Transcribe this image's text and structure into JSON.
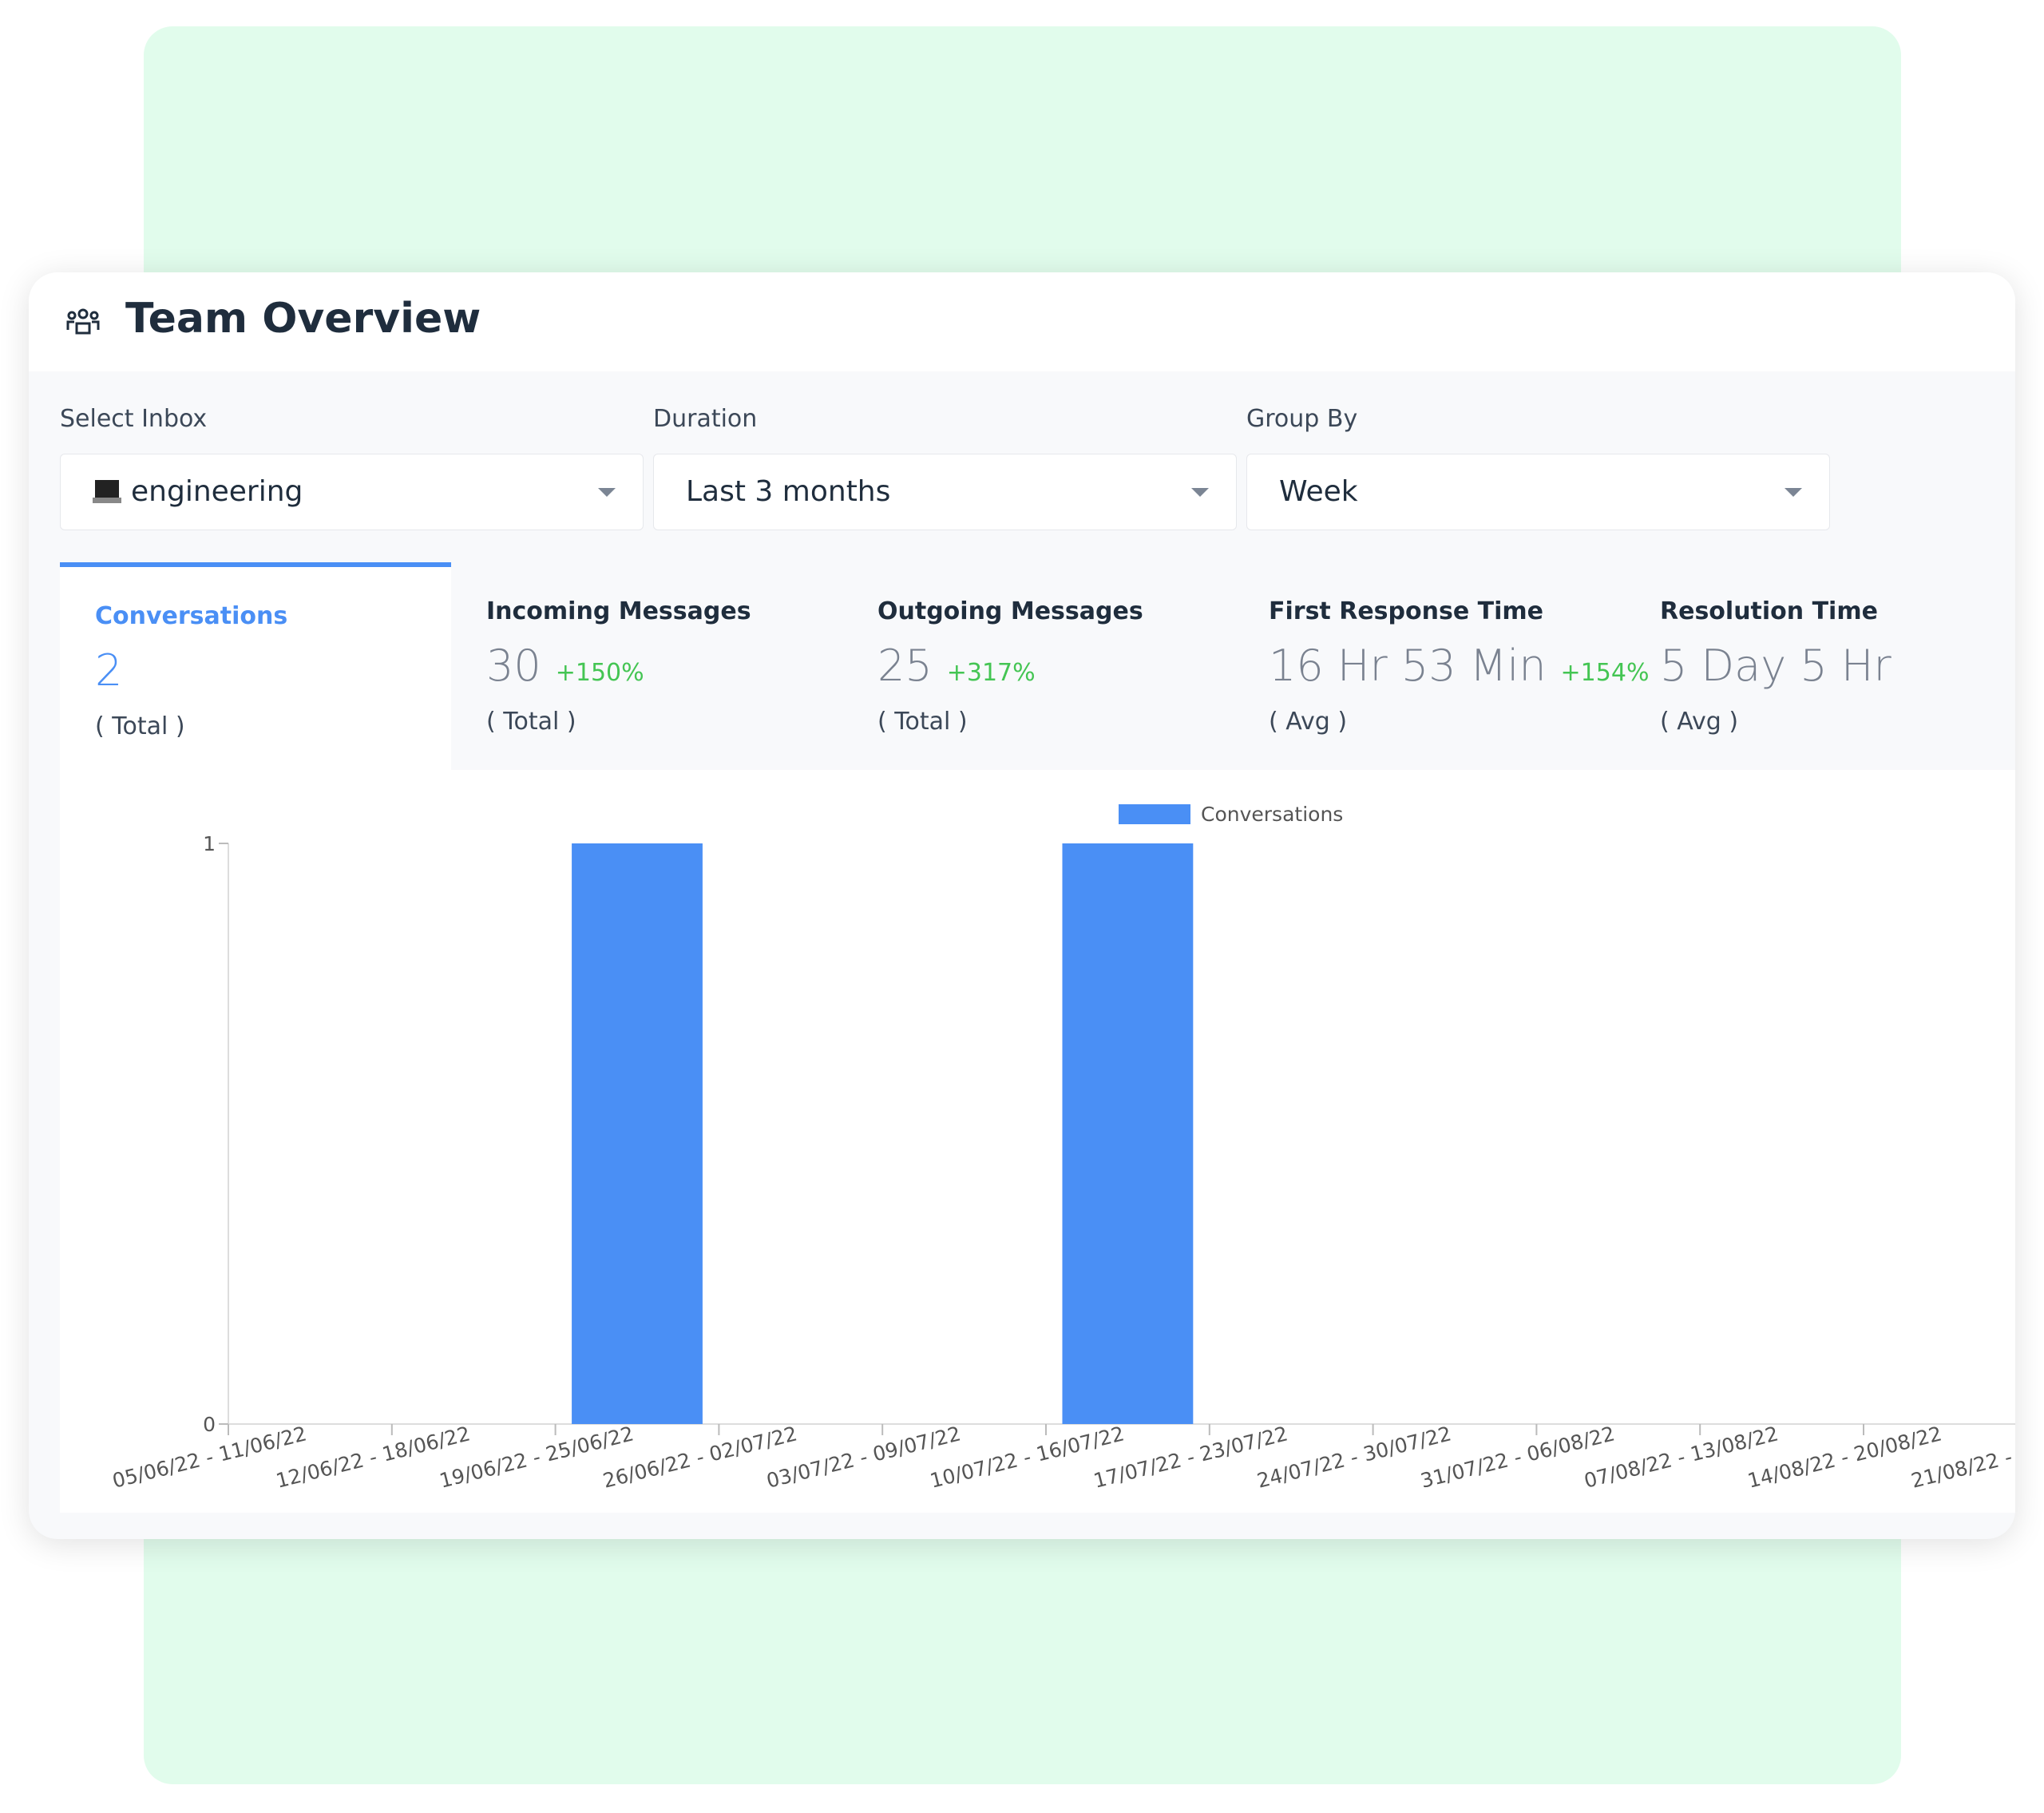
{
  "header": {
    "title": "Team Overview"
  },
  "filters": [
    {
      "label": "Select Inbox",
      "value": "engineering"
    },
    {
      "label": "Duration",
      "value": "Last 3 months"
    },
    {
      "label": "Group By",
      "value": "Week"
    }
  ],
  "metrics": [
    {
      "title": "Conversations",
      "value": "2",
      "unit": "( Total )"
    },
    {
      "title": "Incoming Messages",
      "value": "30",
      "change": "+150%",
      "unit": "( Total )"
    },
    {
      "title": "Outgoing Messages",
      "value": "25",
      "change": "+317%",
      "unit": "( Total )"
    },
    {
      "title": "First Response Time",
      "value": "16 Hr 53 Min",
      "change": "+154%",
      "unit": "( Avg )"
    },
    {
      "title": "Resolution Time",
      "value": "5 Day 5 Hr",
      "unit": "( Avg )"
    }
  ],
  "chart_data": {
    "type": "bar",
    "categories": [
      "05/06/22 - 11/06/22",
      "12/06/22 - 18/06/22",
      "19/06/22 - 25/06/22",
      "26/06/22 - 02/07/22",
      "03/07/22 - 09/07/22",
      "10/07/22 - 16/07/22",
      "17/07/22 - 23/07/22",
      "24/07/22 - 30/07/22",
      "31/07/22 - 06/08/22",
      "07/08/22 - 13/08/22",
      "14/08/22 - 20/08/22",
      "21/08/22 -"
    ],
    "series": [
      {
        "name": "Conversations",
        "color": "#4a8ff5",
        "values": [
          0,
          0,
          1,
          0,
          0,
          1,
          0,
          0,
          0,
          0,
          0,
          0
        ]
      }
    ],
    "ylim": [
      0,
      1
    ],
    "yticks": [
      0,
      1
    ],
    "legend": "top"
  }
}
